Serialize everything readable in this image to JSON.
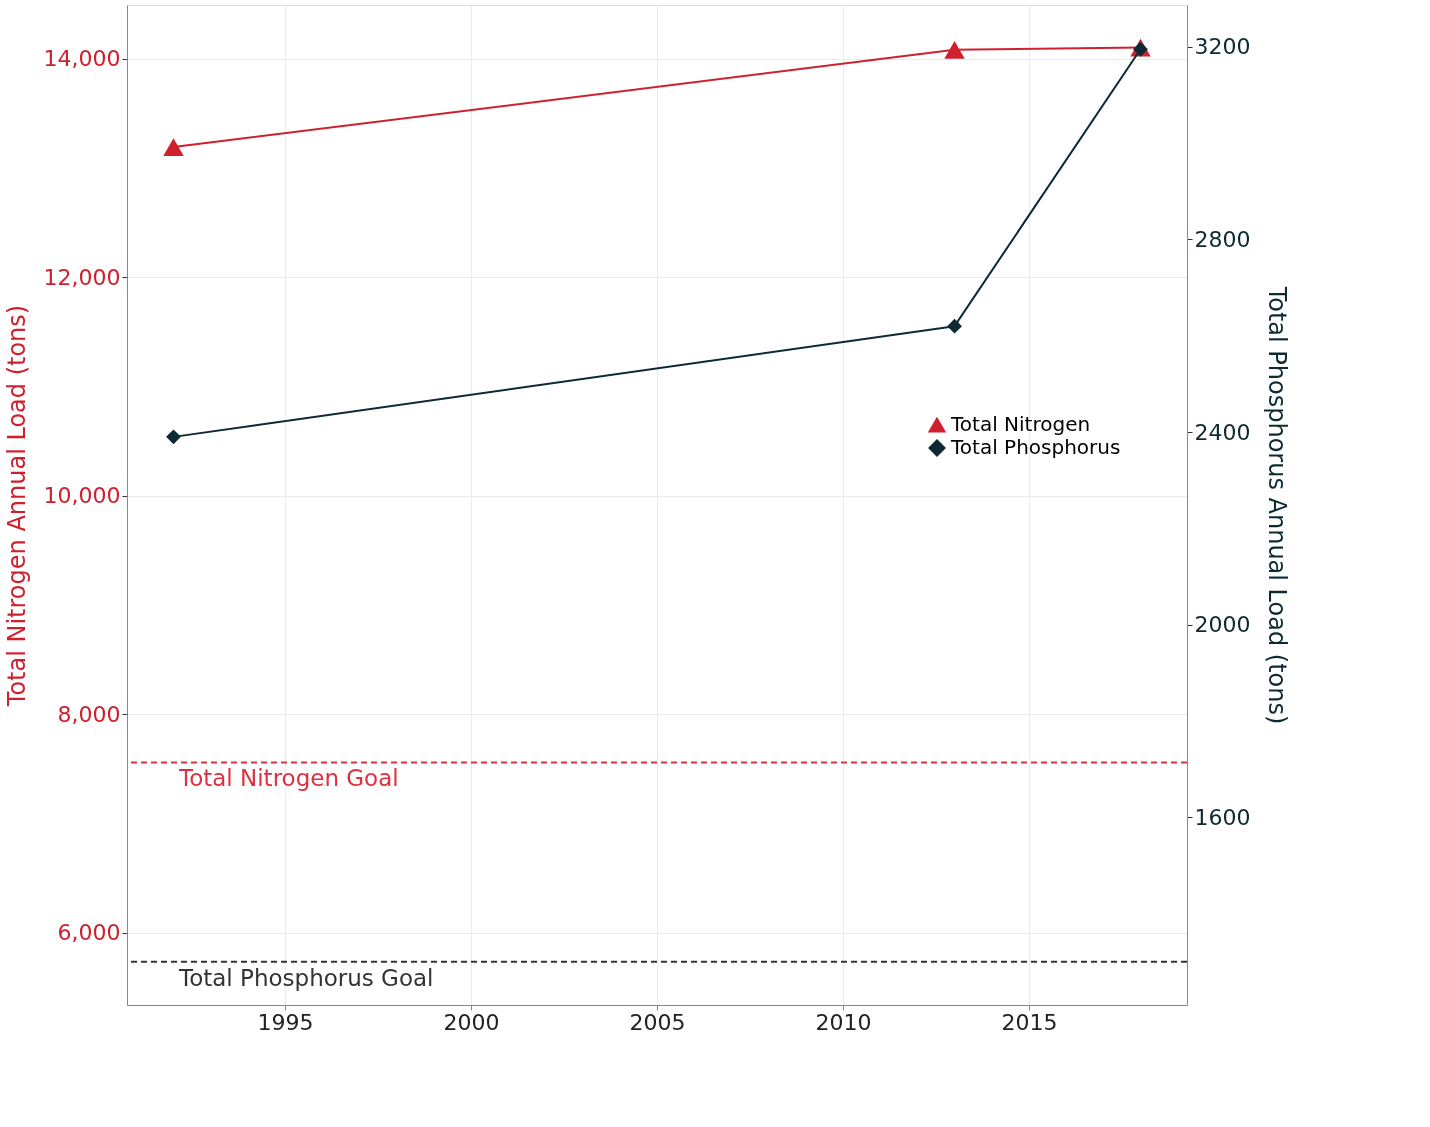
{
  "chart_data": {
    "type": "line",
    "xlabel": null,
    "ylabel": "Total Nitrogen Annual Load (tons)",
    "y2label": "Total Phosphorus Annual Load (tons)",
    "x": [
      1992,
      2013,
      2018
    ],
    "series": [
      {
        "name": "Total Nitrogen",
        "color": "#d0202e",
        "values": [
          13190,
          14080,
          14100
        ],
        "marker": "triangle"
      },
      {
        "name": "Total Phosphorus",
        "color": "#0d2a33",
        "values": [
          2390,
          2620,
          3195
        ],
        "marker": "diamond",
        "axis": "y2"
      }
    ],
    "xlim": [
      1990.75,
      2019.25
    ],
    "xticks": [
      1995,
      2000,
      2005,
      2010,
      2015
    ],
    "ylim": [
      5340,
      14490
    ],
    "yticks": [
      {
        "value": 6000,
        "label": "6,000"
      },
      {
        "value": 8000,
        "label": "8,000"
      },
      {
        "value": 10000,
        "label": "10,000"
      },
      {
        "value": 12000,
        "label": "12,000"
      },
      {
        "value": 14000,
        "label": "14,000"
      }
    ],
    "y2lim": [
      1210,
      3287
    ],
    "y2ticks": [
      {
        "value": 1600,
        "label": "1600"
      },
      {
        "value": 2000,
        "label": "2000"
      },
      {
        "value": 2400,
        "label": "2400"
      },
      {
        "value": 2800,
        "label": "2800"
      },
      {
        "value": 3200,
        "label": "3200"
      }
    ],
    "ref_lines": [
      {
        "axis": "y",
        "value": 7560,
        "label": "Total Nitrogen Goal",
        "color": "#e0303f",
        "line_style": "dashed"
      },
      {
        "axis": "y2",
        "value": 1300,
        "label": "Total Phosphorus Goal",
        "color": "#333333",
        "line_style": "dashed"
      }
    ],
    "grid": true,
    "legend": "right",
    "line_style": "solid"
  }
}
